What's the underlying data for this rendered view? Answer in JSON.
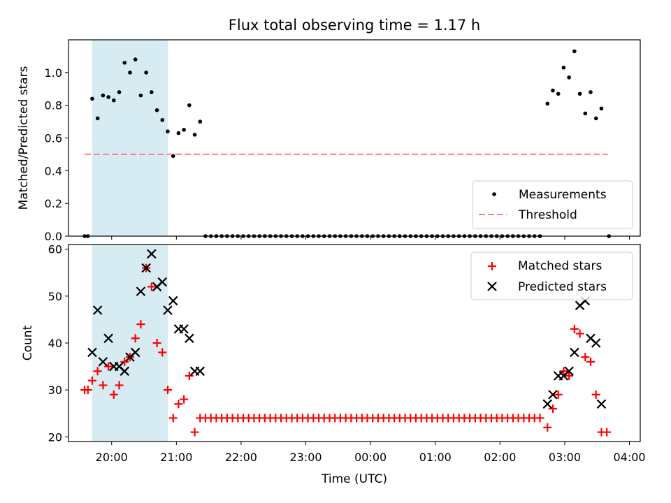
{
  "title": "Flux total observing time = 1.17 h",
  "colors": {
    "highlight_span": "#add8e6",
    "measurement": "#000000",
    "threshold": "#ff8080",
    "matched": "#ff0000",
    "predicted": "#000000"
  },
  "chart_data": [
    {
      "type": "scatter",
      "ylabel": "Matched/Predicted stars",
      "xlabel": "",
      "xlim": [
        "19:20",
        "04:10"
      ],
      "ylim": [
        0,
        1.2
      ],
      "yticks": [
        "0.0",
        "0.2",
        "0.4",
        "0.6",
        "0.8",
        "1.0"
      ],
      "highlight_span": [
        "19:42",
        "20:52"
      ],
      "threshold": 0.5,
      "threshold_range": [
        "19:35",
        "03:40"
      ],
      "legend_position": "lower right",
      "legend": [
        "Measurements",
        "Threshold"
      ],
      "measurements": [
        [
          "19:35",
          0.0
        ],
        [
          "19:38",
          0.0
        ],
        [
          "19:42",
          0.84
        ],
        [
          "19:47",
          0.72
        ],
        [
          "19:52",
          0.86
        ],
        [
          "19:57",
          0.85
        ],
        [
          "20:02",
          0.83
        ],
        [
          "20:07",
          0.88
        ],
        [
          "20:12",
          1.06
        ],
        [
          "20:17",
          1.0
        ],
        [
          "20:22",
          1.08
        ],
        [
          "20:27",
          0.86
        ],
        [
          "20:32",
          1.0
        ],
        [
          "20:37",
          0.88
        ],
        [
          "20:42",
          0.77
        ],
        [
          "20:47",
          0.71
        ],
        [
          "20:52",
          0.64
        ],
        [
          "20:57",
          0.49
        ],
        [
          "21:02",
          0.63
        ],
        [
          "21:07",
          0.65
        ],
        [
          "21:12",
          0.8
        ],
        [
          "21:17",
          0.62
        ],
        [
          "21:22",
          0.7
        ],
        [
          "02:44",
          0.81
        ],
        [
          "02:49",
          0.89
        ],
        [
          "02:54",
          0.87
        ],
        [
          "02:59",
          1.03
        ],
        [
          "03:04",
          0.97
        ],
        [
          "03:09",
          1.13
        ],
        [
          "03:14",
          0.87
        ],
        [
          "03:19",
          0.75
        ],
        [
          "03:24",
          0.88
        ],
        [
          "03:29",
          0.72
        ],
        [
          "03:34",
          0.78
        ],
        [
          "03:41",
          0.0
        ]
      ],
      "zero_run": {
        "start": "21:27",
        "end": "02:39",
        "step_minutes": 5,
        "value": 0.0
      }
    },
    {
      "type": "scatter",
      "ylabel": "Count",
      "xlabel": "Time (UTC)",
      "xlim": [
        "19:20",
        "04:10"
      ],
      "ylim": [
        19,
        61
      ],
      "yticks": [
        "20",
        "30",
        "40",
        "50",
        "60"
      ],
      "xticks": [
        "20:00",
        "21:00",
        "22:00",
        "23:00",
        "00:00",
        "01:00",
        "02:00",
        "03:00",
        "04:00"
      ],
      "highlight_span": [
        "19:42",
        "20:52"
      ],
      "legend_position": "upper right",
      "series": [
        {
          "name": "Matched stars",
          "marker": "+",
          "points": [
            [
              "19:35",
              30
            ],
            [
              "19:38",
              30
            ],
            [
              "19:42",
              32
            ],
            [
              "19:47",
              34
            ],
            [
              "19:52",
              31
            ],
            [
              "19:57",
              35
            ],
            [
              "20:02",
              29
            ],
            [
              "20:07",
              31
            ],
            [
              "20:12",
              36
            ],
            [
              "20:17",
              37
            ],
            [
              "20:22",
              41
            ],
            [
              "20:27",
              44
            ],
            [
              "20:32",
              56
            ],
            [
              "20:37",
              52
            ],
            [
              "20:42",
              40
            ],
            [
              "20:47",
              38
            ],
            [
              "20:52",
              30
            ],
            [
              "20:57",
              24
            ],
            [
              "21:02",
              27
            ],
            [
              "21:07",
              28
            ],
            [
              "21:12",
              33
            ],
            [
              "21:17",
              21
            ],
            [
              "02:44",
              22
            ],
            [
              "02:49",
              26
            ],
            [
              "02:54",
              29
            ],
            [
              "02:59",
              34
            ],
            [
              "03:04",
              33
            ],
            [
              "03:09",
              43
            ],
            [
              "03:14",
              42
            ],
            [
              "03:19",
              37
            ],
            [
              "03:24",
              36
            ],
            [
              "03:29",
              29
            ],
            [
              "03:34",
              21
            ],
            [
              "03:39",
              21
            ]
          ],
          "constant_run": {
            "start": "21:22",
            "end": "02:39",
            "step_minutes": 5,
            "value": 24
          }
        },
        {
          "name": "Predicted stars",
          "marker": "x",
          "points": [
            [
              "19:42",
              38
            ],
            [
              "19:47",
              47
            ],
            [
              "19:52",
              36
            ],
            [
              "19:57",
              41
            ],
            [
              "20:02",
              35
            ],
            [
              "20:07",
              35
            ],
            [
              "20:12",
              34
            ],
            [
              "20:17",
              37
            ],
            [
              "20:22",
              38
            ],
            [
              "20:27",
              51
            ],
            [
              "20:32",
              56
            ],
            [
              "20:37",
              59
            ],
            [
              "20:42",
              52
            ],
            [
              "20:47",
              53
            ],
            [
              "20:52",
              47
            ],
            [
              "20:57",
              49
            ],
            [
              "21:02",
              43
            ],
            [
              "21:07",
              43
            ],
            [
              "21:12",
              41
            ],
            [
              "21:17",
              34
            ],
            [
              "21:22",
              34
            ],
            [
              "02:44",
              27
            ],
            [
              "02:49",
              29
            ],
            [
              "02:54",
              33
            ],
            [
              "02:59",
              33
            ],
            [
              "03:04",
              34
            ],
            [
              "03:09",
              38
            ],
            [
              "03:14",
              48
            ],
            [
              "03:19",
              49
            ],
            [
              "03:24",
              41
            ],
            [
              "03:29",
              40
            ],
            [
              "03:34",
              27
            ]
          ]
        }
      ]
    }
  ]
}
